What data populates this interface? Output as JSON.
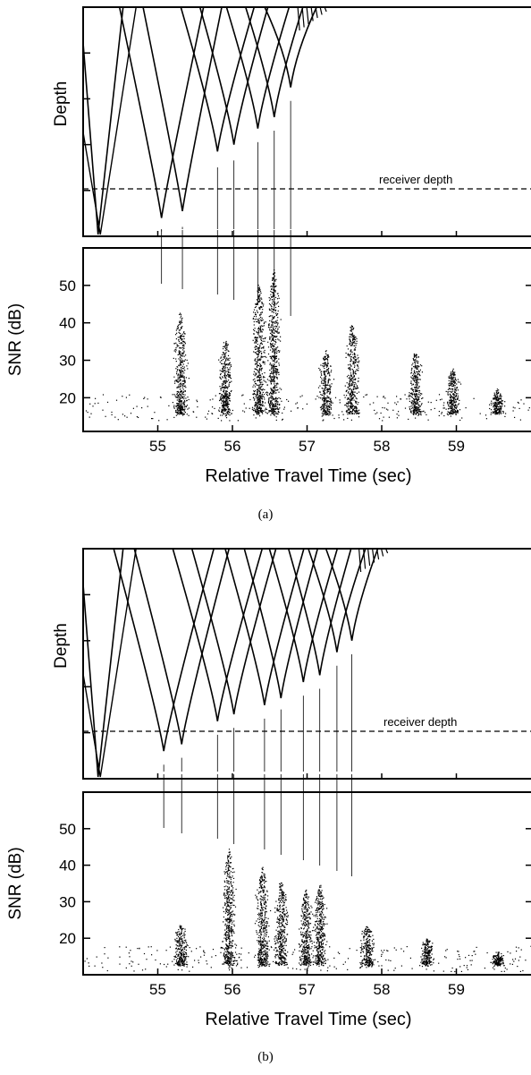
{
  "chart_data": [
    {
      "panel_label": "(a)",
      "type": "line",
      "role": "ray-trace",
      "ylabel": "Depth",
      "xlim": [
        54.0,
        60.0
      ],
      "annotation": "receiver depth",
      "turning_points": [
        55.05,
        55.33,
        55.8,
        56.02,
        56.34,
        56.56,
        56.78
      ],
      "turning_depths": [
        0.92,
        0.89,
        0.63,
        0.6,
        0.53,
        0.48,
        0.35
      ],
      "spike_tops": [
        0.94,
        0.92,
        0.66,
        0.63,
        0.55,
        0.5,
        0.37
      ]
    },
    {
      "panel_label": "(a)",
      "type": "scatter",
      "role": "snr",
      "ylabel": "SNR (dB)",
      "xlabel": "Relative Travel Time (sec)",
      "xlim": [
        54.0,
        60.0
      ],
      "ylim": [
        11,
        60
      ],
      "x_ticks": [
        "55",
        "56",
        "57",
        "58",
        "59"
      ],
      "y_ticks": [
        "20",
        "30",
        "40",
        "50"
      ],
      "peaks": [
        {
          "x": 55.3,
          "y": 43
        },
        {
          "x": 55.9,
          "y": 36
        },
        {
          "x": 56.35,
          "y": 51
        },
        {
          "x": 56.55,
          "y": 55
        },
        {
          "x": 57.25,
          "y": 33
        },
        {
          "x": 57.6,
          "y": 40
        },
        {
          "x": 58.45,
          "y": 33
        },
        {
          "x": 58.95,
          "y": 28
        },
        {
          "x": 59.55,
          "y": 22
        }
      ],
      "noise_floor": 16
    },
    {
      "panel_label": "(b)",
      "type": "line",
      "role": "ray-trace",
      "ylabel": "Depth",
      "xlim": [
        54.0,
        60.0
      ],
      "annotation": "receiver depth",
      "turning_points": [
        55.08,
        55.32,
        55.8,
        56.02,
        56.43,
        56.65,
        56.95,
        57.17,
        57.4,
        57.6
      ],
      "turning_depths": [
        0.88,
        0.85,
        0.75,
        0.72,
        0.68,
        0.65,
        0.58,
        0.55,
        0.45,
        0.4
      ],
      "spike_tops": [
        0.9,
        0.87,
        0.77,
        0.74,
        0.7,
        0.66,
        0.6,
        0.57,
        0.47,
        0.42
      ]
    },
    {
      "panel_label": "(b)",
      "type": "scatter",
      "role": "snr",
      "ylabel": "SNR (dB)",
      "xlabel": "Relative Travel Time (sec)",
      "xlim": [
        54.0,
        60.0
      ],
      "ylim": [
        10,
        60
      ],
      "x_ticks": [
        "55",
        "56",
        "57",
        "58",
        "59"
      ],
      "y_ticks": [
        "20",
        "30",
        "40",
        "50"
      ],
      "peaks": [
        {
          "x": 55.3,
          "y": 24
        },
        {
          "x": 55.95,
          "y": 45
        },
        {
          "x": 56.4,
          "y": 40
        },
        {
          "x": 56.65,
          "y": 36
        },
        {
          "x": 56.98,
          "y": 34
        },
        {
          "x": 57.17,
          "y": 35
        },
        {
          "x": 57.8,
          "y": 24
        },
        {
          "x": 58.6,
          "y": 20
        },
        {
          "x": 59.55,
          "y": 16
        }
      ],
      "noise_floor": 13
    }
  ]
}
